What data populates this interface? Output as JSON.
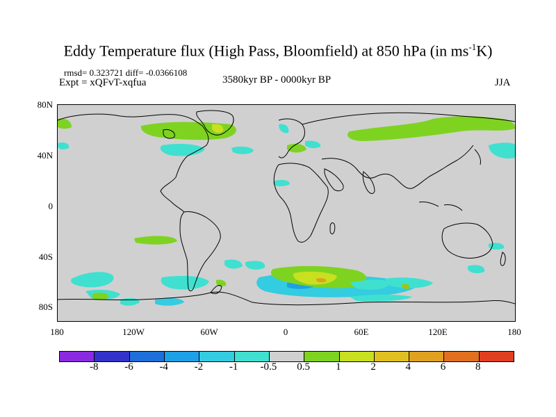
{
  "title": {
    "main": "Eddy Temperature flux (High Pass, Bloomfield) at 850 hPa (in ms",
    "sup": "-1",
    "unit_tail": "K)"
  },
  "stats": {
    "rmsd": "rmsd= 0.323721 diff= -0.0366108",
    "expt": "Expt = xQFvT-xqfua",
    "period": "3580kyr BP - 0000kyr BP",
    "season": "JJA"
  },
  "axes": {
    "lat_labels": [
      "80N",
      "40N",
      "0",
      "40S",
      "80S"
    ],
    "lon_labels": [
      "180",
      "120W",
      "60W",
      "0",
      "60E",
      "120E",
      "180"
    ]
  },
  "colorbar": {
    "colors": [
      "#8a2be2",
      "#3333cc",
      "#1e6fd9",
      "#1ea0e6",
      "#33cce0",
      "#40e0d0",
      "#d0d0d0",
      "#7ed321",
      "#c8e020",
      "#e0c020",
      "#e0a020",
      "#e07020",
      "#e04020"
    ],
    "labels": [
      "-8",
      "-6",
      "-4",
      "-2",
      "-1",
      "-0.5",
      "0.5",
      "1",
      "2",
      "4",
      "6",
      "8"
    ]
  },
  "palette": {
    "background": "#d0d0d0",
    "cyan": "#40e0d0",
    "lightblue": "#33cce0",
    "blue": "#1ea0e6",
    "green": "#7ed321",
    "yellowgreen": "#c8e020",
    "orange": "#e0a020"
  }
}
